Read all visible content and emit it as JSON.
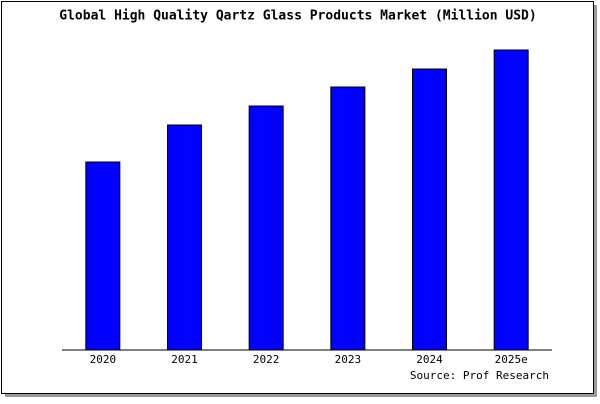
{
  "chart_data": {
    "type": "bar",
    "title": "Global High Quality Qartz Glass Products Market (Million USD)",
    "categories": [
      "2020",
      "2021",
      "2022",
      "2023",
      "2024",
      "2025e"
    ],
    "values": [
      188,
      225,
      244,
      263,
      281,
      300
    ],
    "color": "#0000ff",
    "ylim": [
      0,
      305
    ],
    "source": "Source: Prof Research"
  }
}
